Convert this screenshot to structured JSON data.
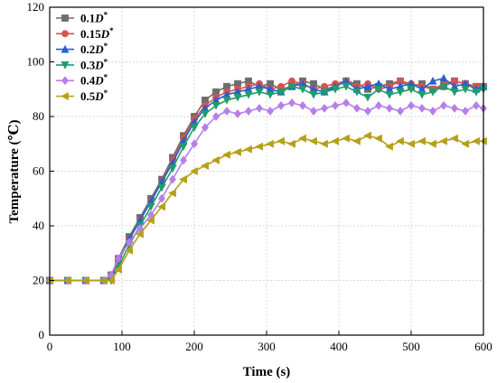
{
  "chart_data": {
    "type": "line",
    "title": "",
    "xlabel": "Time (s)",
    "ylabel": "Temperature (℃)",
    "xlim": [
      0,
      600
    ],
    "ylim": [
      0,
      120
    ],
    "xticks": [
      0,
      100,
      200,
      300,
      400,
      500,
      600
    ],
    "yticks": [
      0,
      20,
      40,
      60,
      80,
      100,
      120
    ],
    "grid": true,
    "legend_position": "top-left",
    "series": [
      {
        "name": "0.1D*",
        "label_prefix": "0.1",
        "label_var": "D",
        "label_sup": "*",
        "color": "#6d6d6d",
        "marker": "square",
        "x": [
          0,
          25,
          50,
          75,
          85,
          95,
          110,
          125,
          140,
          155,
          170,
          185,
          200,
          215,
          230,
          245,
          260,
          275,
          290,
          305,
          320,
          335,
          350,
          365,
          380,
          395,
          410,
          425,
          440,
          455,
          470,
          485,
          500,
          515,
          530,
          545,
          560,
          575,
          590,
          600
        ],
        "y": [
          20,
          20,
          20,
          20,
          22,
          28,
          36,
          43,
          50,
          57,
          65,
          73,
          80,
          86,
          89,
          91,
          92,
          93,
          91,
          92,
          90,
          91,
          93,
          92,
          90,
          91,
          93,
          92,
          90,
          91,
          92,
          93,
          91,
          92,
          90,
          91,
          93,
          92,
          91,
          91
        ]
      },
      {
        "name": "0.15D*",
        "label_prefix": "0.15",
        "label_var": "D",
        "label_sup": "*",
        "color": "#d9534f",
        "marker": "circle",
        "x": [
          0,
          25,
          50,
          75,
          85,
          95,
          110,
          125,
          140,
          155,
          170,
          185,
          200,
          215,
          230,
          245,
          260,
          275,
          290,
          305,
          320,
          335,
          350,
          365,
          380,
          395,
          410,
          425,
          440,
          455,
          470,
          485,
          500,
          515,
          530,
          545,
          560,
          575,
          590,
          600
        ],
        "y": [
          20,
          20,
          20,
          20,
          21,
          27,
          35,
          42,
          49,
          56,
          64,
          72,
          79,
          84,
          87,
          89,
          90,
          91,
          92,
          90,
          91,
          93,
          92,
          90,
          91,
          92,
          93,
          91,
          92,
          90,
          91,
          93,
          92,
          91,
          90,
          92,
          93,
          92,
          91,
          91
        ]
      },
      {
        "name": "0.2D*",
        "label_prefix": "0.2",
        "label_var": "D",
        "label_sup": "*",
        "color": "#2a5fcf",
        "marker": "triangle-up",
        "x": [
          0,
          25,
          50,
          75,
          85,
          95,
          110,
          125,
          140,
          155,
          170,
          185,
          200,
          215,
          230,
          245,
          260,
          275,
          290,
          305,
          320,
          335,
          350,
          365,
          380,
          395,
          410,
          425,
          440,
          455,
          470,
          485,
          500,
          515,
          530,
          545,
          560,
          575,
          590,
          600
        ],
        "y": [
          20,
          20,
          20,
          20,
          21,
          27,
          35,
          42,
          49,
          56,
          63,
          71,
          78,
          83,
          86,
          88,
          89,
          90,
          91,
          90,
          89,
          91,
          92,
          90,
          89,
          91,
          93,
          90,
          91,
          92,
          90,
          91,
          92,
          90,
          93,
          94,
          91,
          92,
          90,
          91
        ]
      },
      {
        "name": "0.3D*",
        "label_prefix": "0.3",
        "label_var": "D",
        "label_sup": "*",
        "color": "#1e9e6b",
        "marker": "triangle-down",
        "x": [
          0,
          25,
          50,
          75,
          85,
          95,
          110,
          125,
          140,
          155,
          170,
          185,
          200,
          215,
          230,
          245,
          260,
          275,
          290,
          305,
          320,
          335,
          350,
          365,
          380,
          395,
          410,
          425,
          440,
          455,
          470,
          485,
          500,
          515,
          530,
          545,
          560,
          575,
          590,
          600
        ],
        "y": [
          20,
          20,
          20,
          20,
          20,
          25,
          33,
          40,
          47,
          54,
          61,
          69,
          76,
          81,
          84,
          86,
          87,
          88,
          89,
          88,
          89,
          91,
          90,
          88,
          89,
          90,
          91,
          89,
          87,
          90,
          88,
          89,
          90,
          88,
          89,
          91,
          89,
          90,
          89,
          90
        ]
      },
      {
        "name": "0.4D*",
        "label_prefix": "0.4",
        "label_var": "D",
        "label_sup": "*",
        "color": "#b77ee8",
        "marker": "diamond",
        "x": [
          0,
          25,
          50,
          75,
          85,
          95,
          110,
          125,
          140,
          155,
          170,
          185,
          200,
          215,
          230,
          245,
          260,
          275,
          290,
          305,
          320,
          335,
          350,
          365,
          380,
          395,
          410,
          425,
          440,
          455,
          470,
          485,
          500,
          515,
          530,
          545,
          560,
          575,
          590,
          600
        ],
        "y": [
          20,
          20,
          20,
          20,
          22,
          28,
          34,
          39,
          44,
          50,
          57,
          64,
          70,
          76,
          80,
          82,
          81,
          82,
          83,
          82,
          84,
          85,
          84,
          82,
          83,
          84,
          85,
          83,
          82,
          84,
          83,
          82,
          84,
          83,
          82,
          84,
          83,
          82,
          84,
          83
        ]
      },
      {
        "name": "0.5D*",
        "label_prefix": "0.5",
        "label_var": "D",
        "label_sup": "*",
        "color": "#b5a018",
        "marker": "triangle-left",
        "x": [
          0,
          25,
          50,
          75,
          85,
          95,
          110,
          125,
          140,
          155,
          170,
          185,
          200,
          215,
          230,
          245,
          260,
          275,
          290,
          305,
          320,
          335,
          350,
          365,
          380,
          395,
          410,
          425,
          440,
          455,
          470,
          485,
          500,
          515,
          530,
          545,
          560,
          575,
          590,
          600
        ],
        "y": [
          20,
          20,
          20,
          20,
          20,
          24,
          31,
          37,
          42,
          47,
          52,
          57,
          60,
          62,
          64,
          66,
          67,
          68,
          69,
          70,
          71,
          70,
          72,
          71,
          70,
          71,
          72,
          71,
          73,
          72,
          69,
          71,
          70,
          71,
          70,
          71,
          72,
          70,
          71,
          71
        ]
      }
    ]
  }
}
